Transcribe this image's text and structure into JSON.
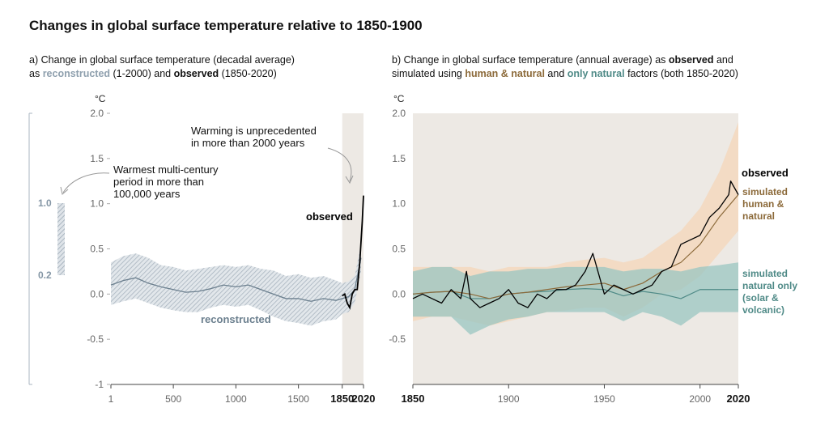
{
  "title": "Changes in global surface temperature relative to 1850-1900",
  "panel_a": {
    "subtitle": {
      "p1": "a) Change in global surface temperature (decadal average)",
      "p2a": "as ",
      "p2b": "reconstructed",
      "p2c": " (1-2000) and ",
      "p2d": "observed",
      "p2e": " (1850-2020)"
    },
    "annotation_warming": [
      "Warming is unprecedented",
      "in more than 2000 years"
    ],
    "annotation_warmest": [
      "Warmest multi-century",
      "period in more than",
      "100,000 years"
    ],
    "label_observed": "observed",
    "label_reconstructed": "reconstructed",
    "range_bar": {
      "top_label": "1.0",
      "bottom_label": "0.2",
      "top": 1.0,
      "bottom": 0.2
    }
  },
  "panel_b": {
    "subtitle": {
      "p1a": "b) Change in global surface temperature (annual average) as ",
      "p1b": "observed",
      "p1c": " and",
      "p2a": "simulated using ",
      "p2b": "human & natural",
      "p2c": " and ",
      "p2d": "only natural",
      "p2e": " factors (both 1850-2020)"
    },
    "label_observed": "observed",
    "label_human": [
      "simulated",
      "human &",
      "natural"
    ],
    "label_natural": [
      "simulated",
      "natural only",
      "(solar &",
      "volcanic)"
    ]
  },
  "colors": {
    "reconstructed": "#6b7f8e",
    "reconstructed_band": "#b9c3cc",
    "observed": "#000000",
    "human_natural": "#8c6a3a",
    "human_band": "#f3d9c0",
    "natural": "#4f8a87",
    "natural_band": "#9ac6c2",
    "shade": "#ede9e4"
  },
  "chart_data": [
    {
      "type": "line",
      "title": "",
      "xlabel": "",
      "ylabel": "°C",
      "ylim": [
        -1,
        2.0
      ],
      "xlim": [
        1,
        2020
      ],
      "y_ticks": [
        "2.0",
        "1.5",
        "1.0",
        "0.5",
        "0.0",
        "-0.5",
        "-1"
      ],
      "x_ticks": [
        "1",
        "500",
        "1000",
        "1500",
        "1850",
        "2020"
      ],
      "grid": false,
      "series": [
        {
          "name": "reconstructed",
          "x": [
            1,
            100,
            200,
            300,
            400,
            500,
            600,
            700,
            800,
            900,
            1000,
            1100,
            1200,
            1300,
            1400,
            1500,
            1600,
            1700,
            1800,
            1850,
            1900,
            1950,
            2000
          ],
          "y": [
            0.1,
            0.15,
            0.18,
            0.12,
            0.08,
            0.05,
            0.02,
            0.03,
            0.06,
            0.1,
            0.08,
            0.1,
            0.05,
            0.0,
            -0.05,
            -0.05,
            -0.08,
            -0.05,
            -0.07,
            -0.05,
            -0.03,
            0.05,
            0.4
          ],
          "lower": [
            -0.12,
            -0.08,
            -0.05,
            -0.1,
            -0.15,
            -0.18,
            -0.2,
            -0.2,
            -0.15,
            -0.12,
            -0.14,
            -0.12,
            -0.18,
            -0.25,
            -0.3,
            -0.32,
            -0.35,
            -0.3,
            -0.28,
            -0.22,
            -0.2,
            -0.1,
            0.25
          ],
          "upper": [
            0.35,
            0.42,
            0.45,
            0.4,
            0.32,
            0.3,
            0.26,
            0.28,
            0.3,
            0.32,
            0.3,
            0.32,
            0.28,
            0.26,
            0.2,
            0.22,
            0.18,
            0.2,
            0.15,
            0.12,
            0.14,
            0.2,
            0.55
          ]
        },
        {
          "name": "observed",
          "x": [
            1850,
            1870,
            1890,
            1910,
            1930,
            1950,
            1970,
            1990,
            2010,
            2020
          ],
          "y": [
            -0.02,
            0.0,
            -0.1,
            -0.15,
            0.0,
            0.05,
            0.05,
            0.35,
            0.8,
            1.09
          ]
        }
      ]
    },
    {
      "type": "line",
      "title": "",
      "xlabel": "",
      "ylabel": "°C",
      "ylim": [
        -1,
        2.0
      ],
      "xlim": [
        1850,
        2020
      ],
      "y_ticks": [
        "2.0",
        "1.5",
        "1.0",
        "0.5",
        "0.0",
        "-0.5"
      ],
      "x_ticks": [
        "1850",
        "1900",
        "1950",
        "2000",
        "2020"
      ],
      "grid": false,
      "series": [
        {
          "name": "observed",
          "x": [
            1850,
            1855,
            1860,
            1865,
            1870,
            1875,
            1878,
            1880,
            1885,
            1890,
            1895,
            1900,
            1905,
            1910,
            1915,
            1920,
            1925,
            1930,
            1935,
            1940,
            1944,
            1950,
            1955,
            1960,
            1965,
            1970,
            1975,
            1980,
            1985,
            1990,
            1995,
            2000,
            2005,
            2010,
            2015,
            2016,
            2020
          ],
          "y": [
            -0.05,
            0.0,
            -0.05,
            -0.1,
            0.05,
            -0.05,
            0.25,
            -0.05,
            -0.15,
            -0.1,
            -0.05,
            0.05,
            -0.1,
            -0.15,
            0.0,
            -0.05,
            0.05,
            0.05,
            0.1,
            0.25,
            0.45,
            0.0,
            0.1,
            0.05,
            0.0,
            0.05,
            0.1,
            0.25,
            0.3,
            0.55,
            0.6,
            0.65,
            0.85,
            0.95,
            1.1,
            1.25,
            1.1
          ]
        },
        {
          "name": "simulated human & natural",
          "x": [
            1850,
            1860,
            1870,
            1880,
            1890,
            1900,
            1910,
            1920,
            1930,
            1940,
            1950,
            1960,
            1970,
            1980,
            1990,
            2000,
            2010,
            2020
          ],
          "y": [
            0.0,
            0.02,
            0.03,
            0.0,
            -0.05,
            0.0,
            0.02,
            0.05,
            0.08,
            0.1,
            0.12,
            0.05,
            0.12,
            0.25,
            0.35,
            0.55,
            0.85,
            1.1
          ],
          "lower": [
            -0.3,
            -0.25,
            -0.25,
            -0.3,
            -0.35,
            -0.3,
            -0.25,
            -0.2,
            -0.18,
            -0.15,
            -0.15,
            -0.25,
            -0.15,
            0.0,
            0.05,
            0.2,
            0.45,
            0.7
          ],
          "upper": [
            0.3,
            0.3,
            0.3,
            0.3,
            0.25,
            0.3,
            0.3,
            0.3,
            0.35,
            0.38,
            0.4,
            0.35,
            0.4,
            0.55,
            0.7,
            0.95,
            1.35,
            1.9
          ]
        },
        {
          "name": "simulated natural only (solar & volcanic)",
          "x": [
            1850,
            1860,
            1870,
            1880,
            1890,
            1900,
            1910,
            1920,
            1930,
            1940,
            1950,
            1960,
            1970,
            1980,
            1990,
            2000,
            2010,
            2020
          ],
          "y": [
            0.0,
            0.02,
            0.03,
            -0.05,
            -0.05,
            0.0,
            0.02,
            0.03,
            0.05,
            0.06,
            0.05,
            -0.02,
            0.03,
            0.0,
            -0.05,
            0.05,
            0.05,
            0.05
          ],
          "lower": [
            -0.25,
            -0.25,
            -0.25,
            -0.45,
            -0.35,
            -0.28,
            -0.25,
            -0.2,
            -0.2,
            -0.2,
            -0.2,
            -0.3,
            -0.2,
            -0.25,
            -0.35,
            -0.2,
            -0.2,
            -0.2
          ],
          "upper": [
            0.25,
            0.3,
            0.3,
            0.2,
            0.25,
            0.25,
            0.28,
            0.28,
            0.3,
            0.3,
            0.3,
            0.25,
            0.28,
            0.28,
            0.25,
            0.3,
            0.32,
            0.35
          ]
        }
      ]
    }
  ]
}
